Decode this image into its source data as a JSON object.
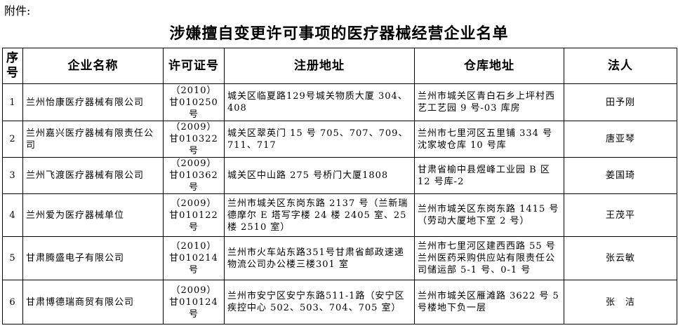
{
  "attachment_label": "附件:",
  "title": "涉嫌擅自变更许可事项的医疗器械经营企业名单",
  "table": {
    "headers": [
      "序号",
      "企业名称",
      "许可证号",
      "注册地址",
      "仓库地址",
      "法人"
    ],
    "rows": [
      {
        "no": "1",
        "name": "兰州怡康医疗器械有限公司",
        "license": "（2010）甘010250号",
        "reg_addr": "城关区临夏路129号城关物质大厦 304、408",
        "warehouse": "兰州市城关区青白石乡上坪村西艺工艺园 9 号-03 库房",
        "legal": "田予刚"
      },
      {
        "no": "2",
        "name": "兰州嘉兴医疗器械有限责任公司",
        "license": "（2009）甘010322号",
        "reg_addr": "城关区翠英门 15 号 705、707、709、711、717",
        "warehouse": "兰州市七里河区五里铺 334 号沈家坡仓库 10 号库",
        "legal": "唐亚琴"
      },
      {
        "no": "3",
        "name": "兰州飞渡医疗器械有限公司",
        "license": "（2009）甘010362号",
        "reg_addr": "城关区中山路 275 号桥门大厦1808",
        "warehouse": "甘肃省榆中县煜峰工业园 B 区 12 号库-2",
        "legal": "姜国琦"
      },
      {
        "no": "4",
        "name": "兰州爱为医疗器械单位",
        "license": "（2009）甘010122号",
        "reg_addr": "兰州市城关区东岗东路 2137 号（兰新瑞德摩尔 E 塔写字楼 24 楼 2405 室、25 楼 2510 室）",
        "warehouse": "兰州市城关区东岗东路 1415 号（劳动大厦地下室 2 号）",
        "legal": "王茂平"
      },
      {
        "no": "5",
        "name": "甘肃腾盛电子有限公司",
        "license": "（2010）甘010214号",
        "reg_addr": "兰州市火车站东路351号甘肃省邮政速递物流公司办公楼三楼301 室",
        "warehouse": "兰州市七里河区建西西路 55 号兰州医药采购供应站有限责任公司储运部 5-1 号、0-1 号",
        "legal": "张云敏"
      },
      {
        "no": "6",
        "name": "甘肃博德瑞商贸有限公司",
        "license": "（2009）甘010124号",
        "reg_addr": "兰州市安宁区安宁东路511-1路（安宁区疾控中心 502、503、704、705 室）",
        "warehouse": "兰州市城关区雁滩路 3622 号 5 号楼地下负一层",
        "legal": "张　洁"
      }
    ]
  }
}
